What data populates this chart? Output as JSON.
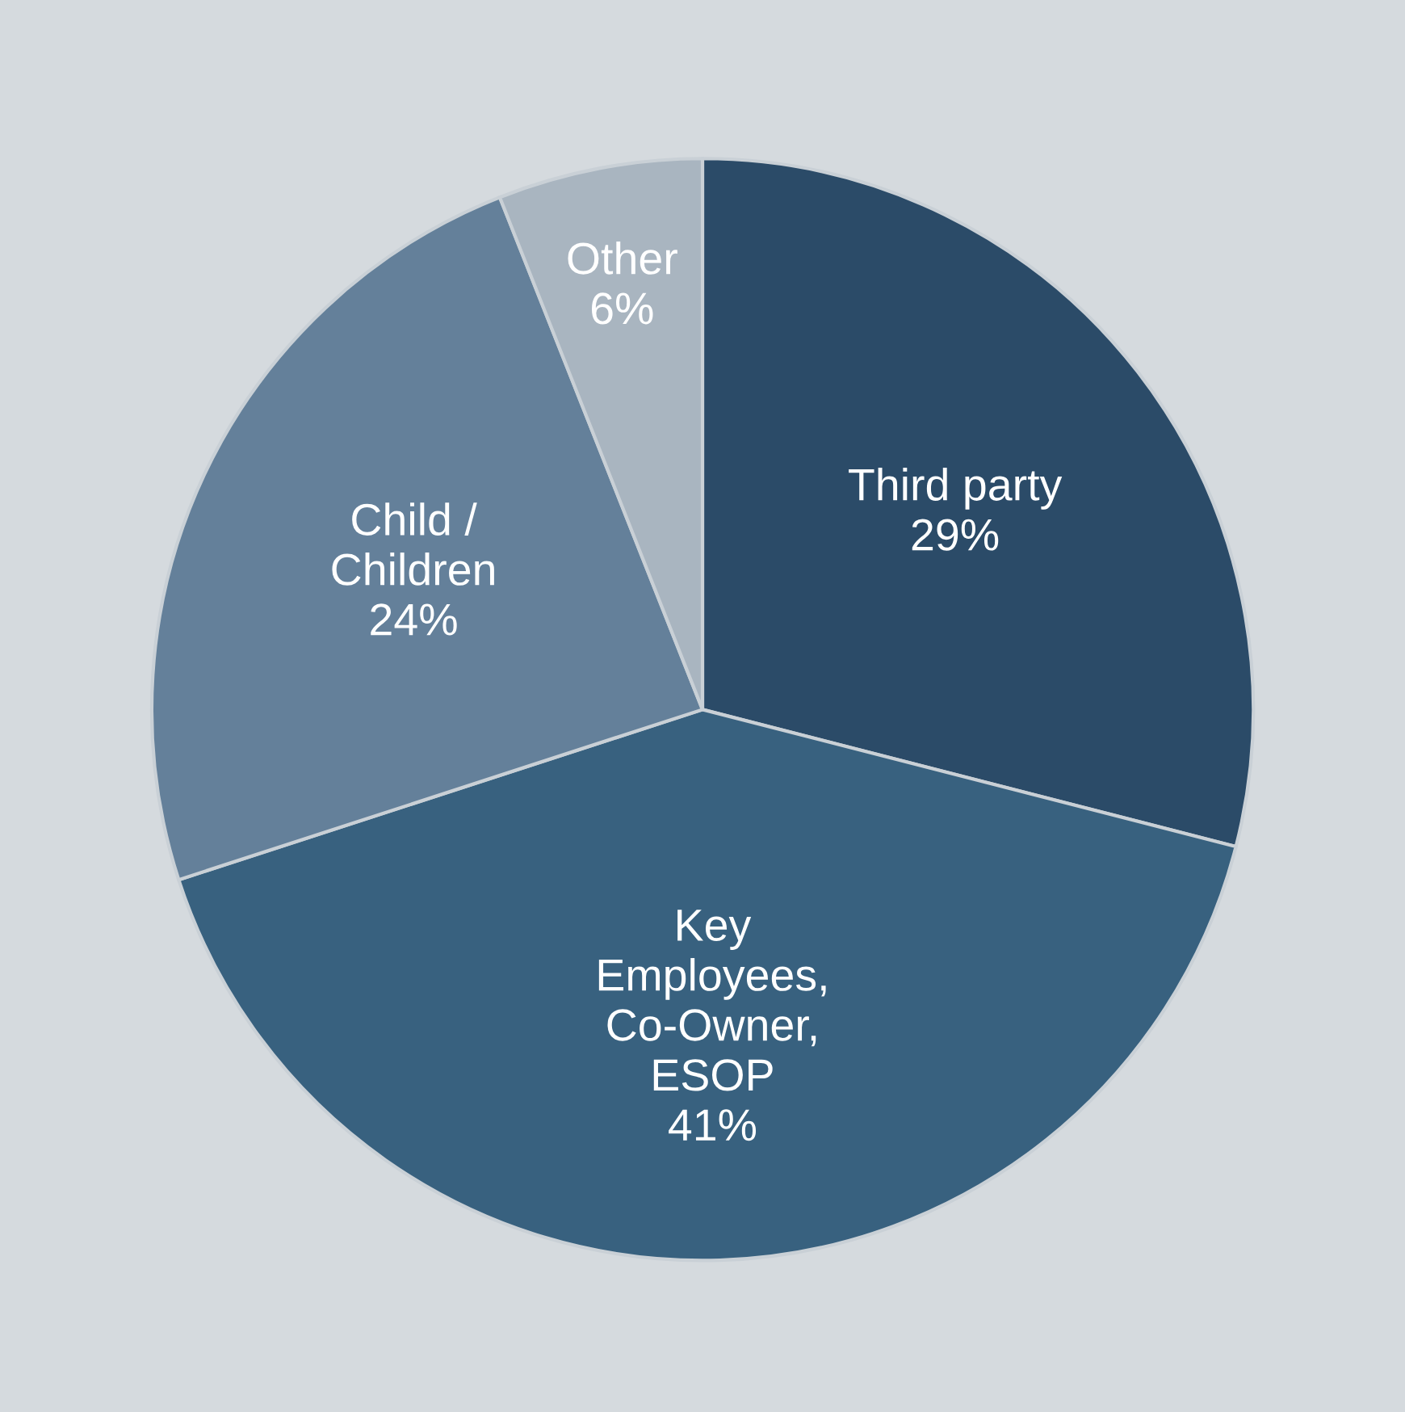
{
  "chart_data": {
    "type": "pie",
    "categories": [
      "Third party",
      "Key\nEmployees,\nCo-Owner,\nESOP",
      "Child /\nChildren",
      "Other"
    ],
    "values": [
      29,
      41,
      24,
      6
    ],
    "value_labels": [
      "29%",
      "41%",
      "24%",
      "6%"
    ],
    "colors": [
      "#2b4b68",
      "#38617f",
      "#64809a",
      "#a9b5c0"
    ]
  }
}
